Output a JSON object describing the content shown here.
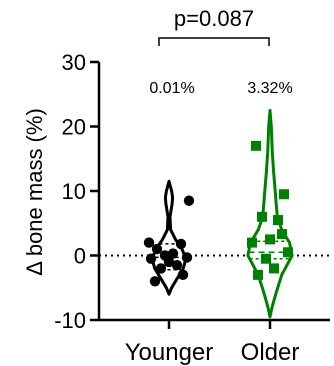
{
  "chart_data": {
    "type": "violin",
    "ylabel": "Δ bone mass (%)",
    "ylim": [
      -10,
      30
    ],
    "y_ticks": [
      -10,
      0,
      10,
      20,
      30
    ],
    "y_tick_labels": [
      "-10",
      "0",
      "10",
      "20",
      "30"
    ],
    "categories": [
      "Younger",
      "Older"
    ],
    "reference_line_y": 0,
    "significance": {
      "text": "p=0.087",
      "between": [
        "Younger",
        "Older"
      ]
    },
    "group_labels": [
      "0.01%",
      "3.32%"
    ],
    "colors": {
      "Younger": "#000000",
      "Older": "#008000"
    },
    "markers": {
      "Younger": "circle",
      "Older": "square"
    },
    "violins": [
      {
        "group": "Younger",
        "color": "#000000",
        "min": -6,
        "max": 11.5,
        "median": -0.3,
        "q1": -2.2,
        "q3": 1.8,
        "width_profile": [
          [
            -6,
            0
          ],
          [
            -5,
            0.1
          ],
          [
            -4,
            0.25
          ],
          [
            -2,
            0.55
          ],
          [
            -0.5,
            0.65
          ],
          [
            1,
            0.5
          ],
          [
            2.5,
            0.25
          ],
          [
            4,
            0.06
          ],
          [
            6,
            0.04
          ],
          [
            8,
            0.12
          ],
          [
            9,
            0.14
          ],
          [
            10,
            0.1
          ],
          [
            11.5,
            0
          ]
        ],
        "points": [
          -4,
          -3,
          -2,
          -1.5,
          -1,
          -0.5,
          -0.3,
          0,
          0.3,
          1,
          1.8,
          2,
          8.5
        ]
      },
      {
        "group": "Older",
        "color": "#008000",
        "min": -9.5,
        "max": 22.5,
        "median": 0.5,
        "q1": -0.5,
        "q3": 2.2,
        "width_profile": [
          [
            -9.5,
            0
          ],
          [
            -8,
            0.08
          ],
          [
            -6,
            0.22
          ],
          [
            -3,
            0.45
          ],
          [
            0,
            0.85
          ],
          [
            2,
            0.75
          ],
          [
            4,
            0.45
          ],
          [
            6,
            0.28
          ],
          [
            8,
            0.24
          ],
          [
            10,
            0.2
          ],
          [
            13,
            0.14
          ],
          [
            16,
            0.09
          ],
          [
            20,
            0.05
          ],
          [
            22.5,
            0
          ]
        ],
        "points": [
          17,
          9.5,
          6,
          5.5,
          2.5,
          2,
          0.5,
          -0.5,
          -2,
          -3,
          3.32
        ]
      }
    ]
  }
}
